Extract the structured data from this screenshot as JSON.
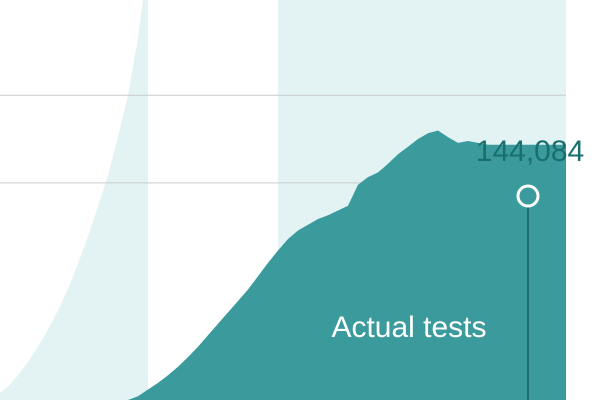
{
  "chart_data": {
    "type": "area",
    "x": [
      -13,
      -12,
      -11,
      -10,
      -9,
      -8,
      -7,
      -6,
      -5,
      -4,
      -3,
      -2,
      -1,
      0,
      1,
      2,
      3,
      4,
      5,
      6,
      7,
      8,
      9,
      10,
      11,
      12,
      13,
      14,
      15,
      16,
      17,
      18,
      19,
      20,
      21,
      22,
      23,
      24,
      25,
      26,
      27,
      28,
      29,
      30,
      31,
      32,
      33,
      34,
      35,
      36
    ],
    "ylim": [
      0,
      210000
    ],
    "gridlines": [
      114000,
      160000
    ],
    "grid": true,
    "series": [
      {
        "name": "Actual tests",
        "values": [
          null,
          null,
          null,
          null,
          null,
          null,
          null,
          null,
          null,
          null,
          null,
          null,
          null,
          0,
          2000,
          5500,
          9000,
          13000,
          17500,
          22500,
          28000,
          34000,
          40000,
          46000,
          52000,
          58000,
          65000,
          72000,
          78500,
          84500,
          89000,
          92000,
          95000,
          97000,
          99500,
          102000,
          113000,
          117000,
          119500,
          124000,
          129000,
          133000,
          137000,
          140000,
          141500,
          138000,
          135000,
          136000,
          135000,
          134000
        ],
        "color": "#3a9a9c"
      },
      {
        "name": "",
        "values": [
          3000,
          7000,
          13000,
          20000,
          28000,
          37000,
          47000,
          58500,
          71500,
          86000,
          101500,
          118000,
          138000,
          160000,
          190000,
          230000,
          null,
          null,
          null,
          null,
          null,
          null,
          null,
          null,
          null,
          null,
          null,
          null,
          null,
          null,
          null,
          null,
          null,
          null,
          null,
          null,
          null,
          null,
          null,
          null,
          null,
          null,
          null,
          null,
          null,
          null,
          null,
          null,
          null,
          null
        ],
        "color": "#e3f3f4"
      }
    ],
    "highlight": {
      "value_label": "144,084",
      "series_label": "Actual tests"
    }
  }
}
